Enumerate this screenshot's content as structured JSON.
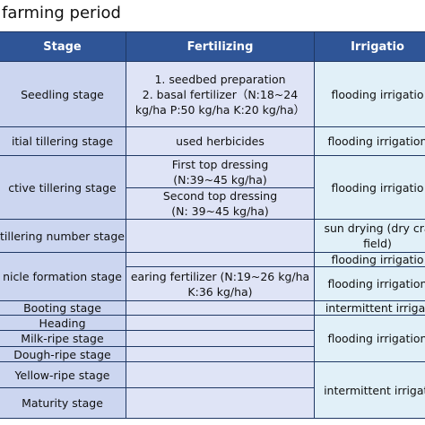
{
  "title": "farming period",
  "header": [
    "Stage",
    "Fertilizing",
    "Irrigatio"
  ],
  "stages": [
    "Seedling stage",
    "itial tillering stage",
    "ctive tillering stage",
    "tillering number stage",
    "nicle formation stage",
    "Booting stage",
    "Heading",
    "Milk-ripe stage",
    "Dough-ripe stage",
    "Yellow-ripe stage",
    "Maturity stage"
  ],
  "fertilizing": [
    [
      "1. seedbed preparation",
      "2. basal fertilizer（N:18~24",
      "kg/ha P:50 kg/ha K:20 kg/ha）"
    ],
    [
      "used herbicides"
    ],
    [
      "First top dressing",
      "(N:39~45 kg/ha)"
    ],
    [
      "Second top dressing",
      "(N: 39~45 kg/ha)"
    ],
    [
      "earing fertilizer (N:19~26 kg/ha",
      "K:36 kg/ha)"
    ]
  ],
  "irrigation": [
    [
      "flooding irrigatio"
    ],
    [
      "flooding irrigation"
    ],
    [
      "flooding irrigatio"
    ],
    [
      "sun drying (dry cra",
      "field)"
    ],
    [
      "flooding irrigatio"
    ],
    [
      "flooding irrigation"
    ],
    [
      "intermittent irrigat"
    ],
    [
      "flooding irrigation"
    ],
    [
      "intermittent irrigati"
    ]
  ]
}
